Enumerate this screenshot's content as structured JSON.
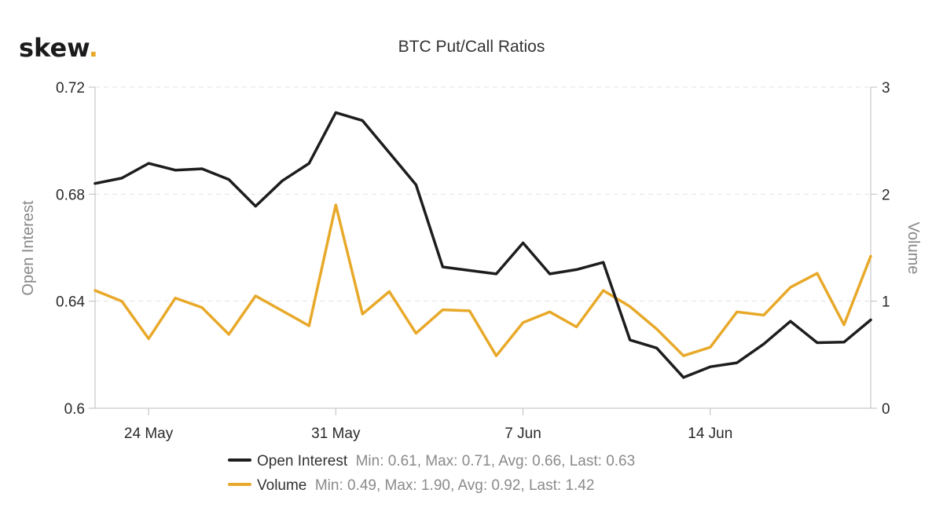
{
  "brand": {
    "name": "skew",
    "dot": ".",
    "dot_color": "#e8a92a"
  },
  "chart_data": {
    "type": "line",
    "title": "BTC Put/Call Ratios",
    "ylabel": "Open Interest",
    "y2label": "Volume",
    "ylim": [
      0.6,
      0.72
    ],
    "y2lim": [
      0,
      3
    ],
    "yticks": [
      "0.6",
      "0.64",
      "0.68",
      "0.72"
    ],
    "y2ticks": [
      "0",
      "1",
      "2",
      "3"
    ],
    "xticks": [
      "24 May",
      "31 May",
      "7 Jun",
      "14 Jun"
    ],
    "xtick_days": [
      2,
      9,
      16,
      23
    ],
    "x_range_days": [
      0,
      29
    ],
    "grid": true,
    "legend_position": "bottom-center",
    "series": [
      {
        "name": "Open Interest",
        "stats": "Min: 0.61, Max: 0.71, Avg: 0.66, Last: 0.63",
        "axis": "left",
        "color": "#1d1d1d",
        "days": [
          0,
          1,
          2,
          3,
          4,
          5,
          6,
          7,
          8,
          9,
          10,
          11,
          12,
          13,
          14,
          15,
          16,
          17,
          18,
          19,
          20,
          21,
          22,
          23,
          24,
          25,
          26,
          27,
          28,
          29
        ],
        "values": [
          0.684,
          0.686,
          0.6915,
          0.689,
          0.6895,
          0.6855,
          0.6755,
          0.685,
          0.6915,
          0.7105,
          0.7075,
          0.6955,
          0.6835,
          0.6528,
          0.6515,
          0.6502,
          0.6618,
          0.6502,
          0.6518,
          0.6545,
          0.6255,
          0.6225,
          0.6115,
          0.6155,
          0.617,
          0.624,
          0.6325,
          0.6245,
          0.6247,
          0.633
        ]
      },
      {
        "name": "Volume",
        "stats": "Min: 0.49, Max: 1.90, Avg: 0.92, Last: 1.42",
        "axis": "right",
        "color": "#e8a92a",
        "days": [
          0,
          1,
          2,
          3,
          4,
          5,
          6,
          7,
          8,
          9,
          10,
          11,
          12,
          13,
          14,
          15,
          16,
          17,
          18,
          19,
          20,
          21,
          22,
          23,
          24,
          25,
          26,
          27,
          28,
          29
        ],
        "values": [
          1.1,
          1.0,
          0.65,
          1.03,
          0.94,
          0.69,
          1.05,
          0.91,
          0.77,
          1.9,
          0.88,
          1.09,
          0.7,
          0.92,
          0.91,
          0.49,
          0.8,
          0.9,
          0.76,
          1.1,
          0.95,
          0.74,
          0.49,
          0.57,
          0.9,
          0.87,
          1.13,
          1.26,
          0.78,
          1.42
        ]
      }
    ]
  }
}
